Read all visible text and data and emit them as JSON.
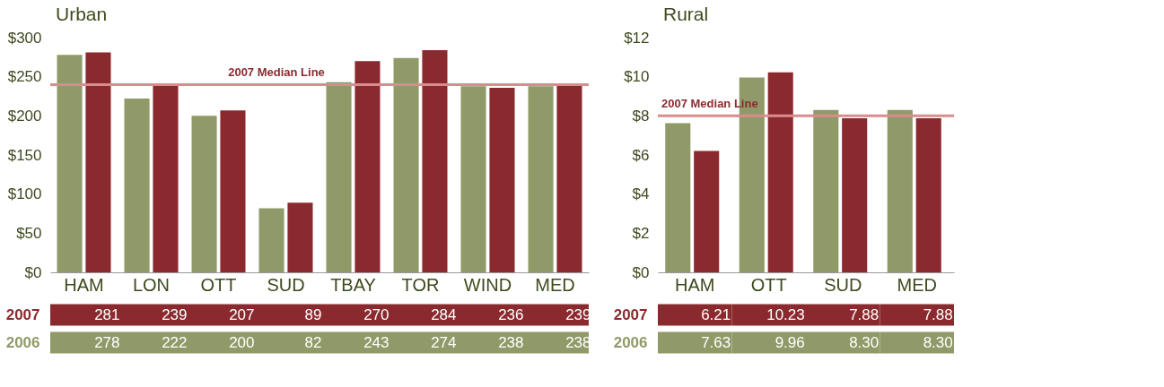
{
  "chart_data": [
    {
      "type": "bar",
      "title": "Urban",
      "categories": [
        "HAM",
        "LON",
        "OTT",
        "SUD",
        "TBAY",
        "TOR",
        "WIND",
        "MED"
      ],
      "series": [
        {
          "name": "2006",
          "color": "#8f9a68",
          "values": [
            278,
            222,
            200,
            82,
            243,
            274,
            238,
            238
          ],
          "value_labels": [
            "278",
            "222",
            "200",
            "82",
            "243",
            "274",
            "238",
            "238"
          ]
        },
        {
          "name": "2007",
          "color": "#8b2a2e",
          "values": [
            281,
            239,
            207,
            89,
            270,
            284,
            236,
            239
          ],
          "value_labels": [
            "281",
            "239",
            "207",
            "89",
            "270",
            "284",
            "236",
            "239"
          ]
        }
      ],
      "ylim": [
        0,
        300
      ],
      "yticks": [
        {
          "value": 0,
          "label": "$0"
        },
        {
          "value": 50,
          "label": "$50"
        },
        {
          "value": 100,
          "label": "$100"
        },
        {
          "value": 150,
          "label": "$150"
        },
        {
          "value": 200,
          "label": "$200"
        },
        {
          "value": 250,
          "label": "$250"
        },
        {
          "value": 300,
          "label": "$300"
        }
      ],
      "ref_lines": [
        {
          "axis": "y",
          "value": 240,
          "label": "2007 Median Line",
          "color": "#d98c8c"
        }
      ],
      "grid": false,
      "legend": "bottom"
    },
    {
      "type": "bar",
      "title": "Rural",
      "categories": [
        "HAM",
        "OTT",
        "SUD",
        "MED"
      ],
      "series": [
        {
          "name": "2006",
          "color": "#8f9a68",
          "values": [
            7.63,
            9.96,
            8.3,
            8.3
          ],
          "value_labels": [
            "7.63",
            "9.96",
            "8.30",
            "8.30"
          ]
        },
        {
          "name": "2007",
          "color": "#8b2a2e",
          "values": [
            6.21,
            10.23,
            7.88,
            7.88
          ],
          "value_labels": [
            "6.21",
            "10.23",
            "7.88",
            "7.88"
          ]
        }
      ],
      "ylim": [
        0,
        12
      ],
      "yticks": [
        {
          "value": 0,
          "label": "$0"
        },
        {
          "value": 2,
          "label": "$2"
        },
        {
          "value": 4,
          "label": "$4"
        },
        {
          "value": 6,
          "label": "$6"
        },
        {
          "value": 8,
          "label": "$8"
        },
        {
          "value": 10,
          "label": "$10"
        },
        {
          "value": 12,
          "label": "$12"
        }
      ],
      "ref_lines": [
        {
          "axis": "y",
          "value": 8,
          "label": "2007 Median Line",
          "color": "#d98c8c"
        }
      ],
      "grid": false,
      "legend": "bottom"
    }
  ]
}
